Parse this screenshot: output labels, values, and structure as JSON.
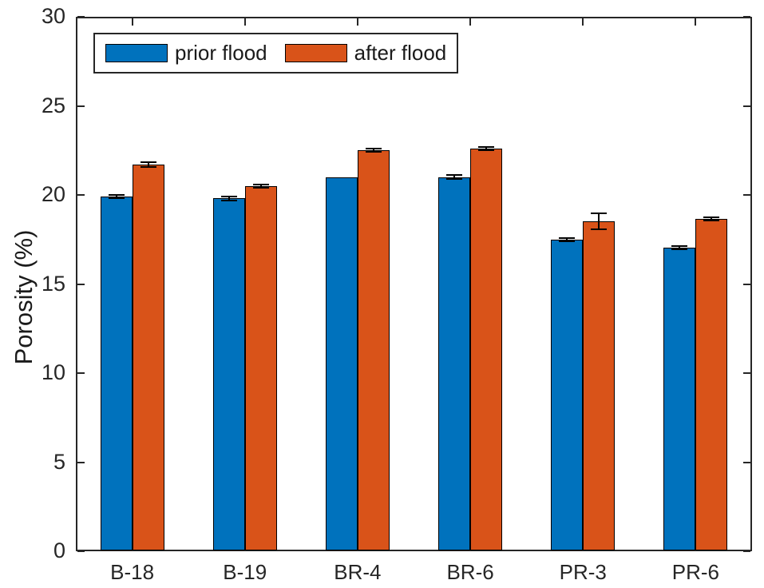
{
  "chart_data": {
    "type": "bar",
    "title": "",
    "xlabel": "",
    "ylabel": "Porosity (%)",
    "ylim": [
      0,
      30
    ],
    "yticks": [
      0,
      5,
      10,
      15,
      20,
      25,
      30
    ],
    "categories": [
      "B-18",
      "B-19",
      "BR-4",
      "BR-6",
      "PR-3",
      "PR-6"
    ],
    "series": [
      {
        "name": "prior flood",
        "color": "#0072BD",
        "values": [
          19.9,
          19.8,
          21.0,
          21.0,
          17.5,
          17.05
        ],
        "errors": [
          0.1,
          0.1,
          0,
          0.1,
          0.1,
          0.1
        ]
      },
      {
        "name": "after flood",
        "color": "#D95319",
        "values": [
          21.7,
          20.5,
          22.5,
          22.6,
          18.5,
          18.65
        ],
        "errors": [
          0.15,
          0.1,
          0.08,
          0.08,
          0.45,
          0.08
        ]
      }
    ],
    "legend": {
      "position": "top-left",
      "entries": [
        "prior flood",
        "after flood"
      ]
    },
    "grid": false,
    "axis_color": "#262626",
    "bar_edge_color": "#000000",
    "error_bar_color": "#000000",
    "background": "#ffffff"
  }
}
